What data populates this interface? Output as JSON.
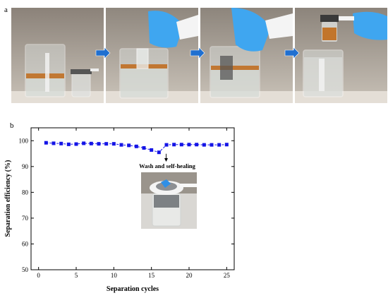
{
  "panel_a": {
    "label": "a",
    "photo_count": 4
  },
  "panel_b": {
    "label": "b"
  },
  "inset": {
    "caption": "Wash and self-healing"
  },
  "colors": {
    "series": "#1414e6",
    "glove": "#3fa6f0",
    "oil": "#c06a1a"
  },
  "chart_data": {
    "type": "line",
    "xlabel": "Separation cycles",
    "ylabel": "Separation efficiency (%)",
    "xlim": [
      -1,
      26
    ],
    "ylim": [
      50,
      105
    ],
    "xticks": [
      0,
      5,
      10,
      15,
      20,
      25
    ],
    "yticks": [
      50,
      60,
      70,
      80,
      90,
      100
    ],
    "grid": false,
    "marker": "square",
    "line_style": "dashed",
    "series": [
      {
        "x": [
          1,
          2,
          3,
          4,
          5,
          6,
          7,
          8,
          9,
          10,
          11,
          12,
          13,
          14,
          15,
          16,
          17,
          18,
          19,
          20,
          21,
          22,
          23,
          24,
          25
        ],
        "values": [
          99.2,
          99.0,
          98.9,
          98.6,
          98.7,
          99.0,
          98.9,
          98.8,
          98.8,
          98.8,
          98.4,
          98.2,
          97.8,
          97.2,
          96.4,
          95.5,
          98.4,
          98.5,
          98.5,
          98.5,
          98.5,
          98.4,
          98.4,
          98.4,
          98.5
        ]
      }
    ],
    "annotation": {
      "text": "Wash and self-healing",
      "at_x": 17
    }
  }
}
